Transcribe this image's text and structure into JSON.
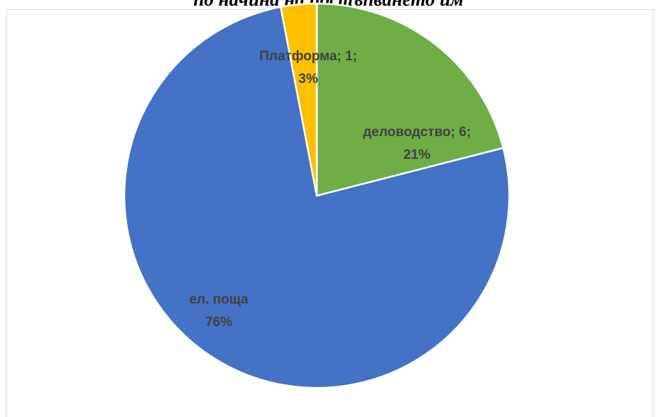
{
  "chart_data": {
    "type": "pie",
    "title": "по начина на постъпването им",
    "slices": [
      {
        "name": "деловодство",
        "value": 6,
        "percent_label": "21%",
        "label_line1": "деловодство; 6;",
        "label_line2": "21%",
        "color": "#70ad47"
      },
      {
        "name": "ел. поща",
        "percent": 76,
        "percent_label": "76%",
        "label_line1": "ел. поща",
        "label_line2": "76%",
        "color": "#4472c4"
      },
      {
        "name": "Платформа",
        "value": 1,
        "percent_label": "3%",
        "label_line1": "Платформа; 1;",
        "label_line2": "3%",
        "color": "#ffc000"
      }
    ],
    "legend": "none",
    "start": "12 o'clock, clockwise"
  }
}
